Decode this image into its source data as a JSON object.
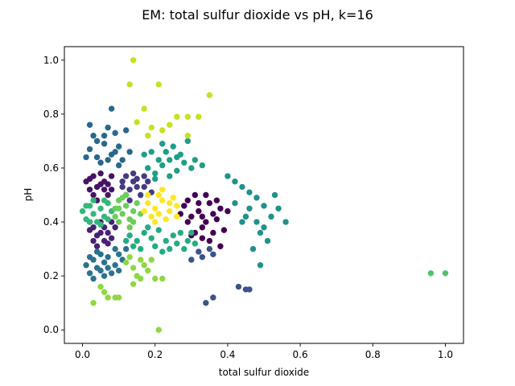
{
  "chart_data": {
    "type": "scatter",
    "title": "EM: total sulfur dioxide vs pH, k=16",
    "xlabel": "total sulfur dioxide",
    "ylabel": "pH",
    "xlim": [
      -0.05,
      1.05
    ],
    "ylim": [
      -0.05,
      1.05
    ],
    "xticks": [
      0.0,
      0.2,
      0.4,
      0.6,
      0.8,
      1.0
    ],
    "yticks": [
      0.0,
      0.2,
      0.4,
      0.6,
      0.8,
      1.0
    ],
    "tick_labels_x": [
      "0.0",
      "0.2",
      "0.4",
      "0.6",
      "0.8",
      "1.0"
    ],
    "tick_labels_y": [
      "0.0",
      "0.2",
      "0.4",
      "0.6",
      "0.8",
      "1.0"
    ],
    "grid": false,
    "legend": "none",
    "colormap": "viridis",
    "clusters": [
      {
        "color": "#440154",
        "points": [
          [
            0.28,
            0.46
          ],
          [
            0.3,
            0.42
          ],
          [
            0.32,
            0.44
          ],
          [
            0.34,
            0.4
          ],
          [
            0.36,
            0.43
          ],
          [
            0.38,
            0.45
          ],
          [
            0.33,
            0.38
          ],
          [
            0.29,
            0.48
          ],
          [
            0.31,
            0.5
          ],
          [
            0.35,
            0.47
          ],
          [
            0.37,
            0.41
          ],
          [
            0.39,
            0.37
          ],
          [
            0.27,
            0.43
          ],
          [
            0.3,
            0.35
          ],
          [
            0.33,
            0.34
          ],
          [
            0.36,
            0.36
          ],
          [
            0.34,
            0.5
          ],
          [
            0.4,
            0.44
          ],
          [
            0.32,
            0.47
          ],
          [
            0.29,
            0.4
          ],
          [
            0.35,
            0.33
          ],
          [
            0.38,
            0.31
          ],
          [
            0.31,
            0.36
          ],
          [
            0.37,
            0.48
          ],
          [
            0.33,
            0.42
          ]
        ]
      },
      {
        "color": "#471365",
        "points": [
          [
            0.02,
            0.56
          ],
          [
            0.04,
            0.53
          ],
          [
            0.06,
            0.55
          ],
          [
            0.08,
            0.52
          ],
          [
            0.03,
            0.5
          ],
          [
            0.05,
            0.58
          ],
          [
            0.07,
            0.5
          ],
          [
            0.04,
            0.48
          ],
          [
            0.06,
            0.52
          ],
          [
            0.02,
            0.52
          ],
          [
            0.08,
            0.57
          ],
          [
            0.05,
            0.54
          ],
          [
            0.03,
            0.57
          ],
          [
            0.07,
            0.54
          ],
          [
            0.01,
            0.55
          ]
        ]
      },
      {
        "color": "#482173",
        "points": [
          [
            0.02,
            0.37
          ],
          [
            0.04,
            0.35
          ],
          [
            0.06,
            0.38
          ],
          [
            0.08,
            0.34
          ],
          [
            0.03,
            0.33
          ],
          [
            0.05,
            0.4
          ],
          [
            0.07,
            0.36
          ],
          [
            0.09,
            0.38
          ],
          [
            0.04,
            0.31
          ],
          [
            0.06,
            0.33
          ],
          [
            0.02,
            0.4
          ],
          [
            0.08,
            0.4
          ],
          [
            0.05,
            0.36
          ],
          [
            0.03,
            0.38
          ],
          [
            0.07,
            0.32
          ]
        ]
      },
      {
        "color": "#443a83",
        "points": [
          [
            0.11,
            0.55
          ],
          [
            0.13,
            0.52
          ],
          [
            0.15,
            0.56
          ],
          [
            0.17,
            0.53
          ],
          [
            0.12,
            0.5
          ],
          [
            0.14,
            0.58
          ],
          [
            0.16,
            0.5
          ],
          [
            0.18,
            0.55
          ],
          [
            0.13,
            0.48
          ],
          [
            0.15,
            0.53
          ],
          [
            0.19,
            0.51
          ],
          [
            0.11,
            0.53
          ],
          [
            0.14,
            0.55
          ],
          [
            0.17,
            0.57
          ],
          [
            0.12,
            0.57
          ]
        ]
      },
      {
        "color": "#3b528b",
        "points": [
          [
            0.35,
            0.3
          ],
          [
            0.36,
            0.28
          ],
          [
            0.33,
            0.27
          ],
          [
            0.3,
            0.26
          ],
          [
            0.43,
            0.16
          ],
          [
            0.45,
            0.15
          ],
          [
            0.46,
            0.15
          ],
          [
            0.34,
            0.1
          ],
          [
            0.36,
            0.12
          ],
          [
            0.32,
            0.29
          ]
        ]
      },
      {
        "color": "#2c728e",
        "points": [
          [
            0.01,
            0.24
          ],
          [
            0.03,
            0.26
          ],
          [
            0.05,
            0.22
          ],
          [
            0.07,
            0.27
          ],
          [
            0.09,
            0.24
          ],
          [
            0.02,
            0.21
          ],
          [
            0.04,
            0.29
          ],
          [
            0.06,
            0.25
          ],
          [
            0.08,
            0.21
          ],
          [
            0.1,
            0.28
          ],
          [
            0.03,
            0.19
          ],
          [
            0.12,
            0.3
          ],
          [
            0.11,
            0.26
          ],
          [
            0.05,
            0.28
          ],
          [
            0.07,
            0.23
          ],
          [
            0.09,
            0.3
          ],
          [
            0.02,
            0.27
          ],
          [
            0.04,
            0.23
          ],
          [
            0.06,
            0.2
          ],
          [
            0.1,
            0.22
          ]
        ]
      },
      {
        "color": "#28688e",
        "points": [
          [
            0.02,
            0.67
          ],
          [
            0.04,
            0.64
          ],
          [
            0.06,
            0.69
          ],
          [
            0.08,
            0.65
          ],
          [
            0.1,
            0.68
          ],
          [
            0.03,
            0.72
          ],
          [
            0.07,
            0.75
          ],
          [
            0.09,
            0.73
          ],
          [
            0.02,
            0.76
          ],
          [
            0.05,
            0.62
          ],
          [
            0.11,
            0.63
          ],
          [
            0.13,
            0.66
          ],
          [
            0.07,
            0.63
          ],
          [
            0.1,
            0.61
          ],
          [
            0.04,
            0.7
          ],
          [
            0.08,
            0.82
          ],
          [
            0.06,
            0.72
          ],
          [
            0.12,
            0.74
          ],
          [
            0.01,
            0.64
          ],
          [
            0.09,
            0.66
          ]
        ]
      },
      {
        "color": "#21918c",
        "points": [
          [
            0.4,
            0.57
          ],
          [
            0.42,
            0.55
          ],
          [
            0.44,
            0.53
          ],
          [
            0.46,
            0.51
          ],
          [
            0.48,
            0.49
          ],
          [
            0.5,
            0.46
          ],
          [
            0.52,
            0.42
          ],
          [
            0.54,
            0.45
          ],
          [
            0.56,
            0.4
          ],
          [
            0.53,
            0.5
          ],
          [
            0.46,
            0.45
          ],
          [
            0.44,
            0.4
          ],
          [
            0.49,
            0.36
          ],
          [
            0.51,
            0.33
          ],
          [
            0.47,
            0.3
          ],
          [
            0.49,
            0.24
          ],
          [
            0.42,
            0.47
          ],
          [
            0.48,
            0.4
          ],
          [
            0.45,
            0.42
          ],
          [
            0.5,
            0.38
          ]
        ]
      },
      {
        "color": "#1f9e89",
        "points": [
          [
            0.18,
            0.6
          ],
          [
            0.2,
            0.58
          ],
          [
            0.22,
            0.61
          ],
          [
            0.24,
            0.57
          ],
          [
            0.26,
            0.59
          ],
          [
            0.28,
            0.62
          ],
          [
            0.3,
            0.6
          ],
          [
            0.21,
            0.63
          ],
          [
            0.23,
            0.66
          ],
          [
            0.25,
            0.68
          ],
          [
            0.27,
            0.65
          ],
          [
            0.29,
            0.7
          ],
          [
            0.31,
            0.63
          ],
          [
            0.33,
            0.61
          ],
          [
            0.19,
            0.66
          ],
          [
            0.22,
            0.69
          ],
          [
            0.26,
            0.64
          ],
          [
            0.2,
            0.56
          ],
          [
            0.24,
            0.63
          ],
          [
            0.17,
            0.65
          ]
        ]
      },
      {
        "color": "#25ab82",
        "points": [
          [
            0.13,
            0.35
          ],
          [
            0.15,
            0.33
          ],
          [
            0.17,
            0.36
          ],
          [
            0.19,
            0.34
          ],
          [
            0.21,
            0.37
          ],
          [
            0.23,
            0.33
          ],
          [
            0.25,
            0.35
          ],
          [
            0.27,
            0.36
          ],
          [
            0.29,
            0.33
          ],
          [
            0.14,
            0.31
          ],
          [
            0.16,
            0.3
          ],
          [
            0.2,
            0.31
          ],
          [
            0.24,
            0.3
          ],
          [
            0.18,
            0.38
          ],
          [
            0.22,
            0.29
          ],
          [
            0.26,
            0.32
          ],
          [
            0.28,
            0.3
          ],
          [
            0.12,
            0.33
          ],
          [
            0.3,
            0.36
          ],
          [
            0.31,
            0.32
          ]
        ]
      },
      {
        "color": "#35b779",
        "points": [
          [
            0.0,
            0.44
          ],
          [
            0.01,
            0.41
          ],
          [
            0.02,
            0.46
          ],
          [
            0.03,
            0.43
          ],
          [
            0.04,
            0.4
          ],
          [
            0.05,
            0.45
          ],
          [
            0.06,
            0.42
          ],
          [
            0.07,
            0.47
          ],
          [
            0.08,
            0.44
          ],
          [
            0.03,
            0.48
          ],
          [
            0.05,
            0.39
          ],
          [
            0.01,
            0.46
          ],
          [
            0.07,
            0.41
          ],
          [
            0.02,
            0.4
          ],
          [
            0.06,
            0.48
          ]
        ]
      },
      {
        "color": "#4ec36b",
        "points": [
          [
            0.96,
            0.21
          ],
          [
            1.0,
            0.21
          ]
        ]
      },
      {
        "color": "#6ccd5a",
        "points": [
          [
            0.09,
            0.45
          ],
          [
            0.1,
            0.48
          ],
          [
            0.11,
            0.43
          ],
          [
            0.12,
            0.46
          ],
          [
            0.13,
            0.41
          ],
          [
            0.14,
            0.44
          ],
          [
            0.1,
            0.4
          ],
          [
            0.15,
            0.47
          ],
          [
            0.12,
            0.5
          ],
          [
            0.09,
            0.42
          ],
          [
            0.13,
            0.38
          ],
          [
            0.11,
            0.49
          ],
          [
            0.14,
            0.4
          ],
          [
            0.16,
            0.43
          ],
          [
            0.1,
            0.45
          ]
        ]
      },
      {
        "color": "#8fd744",
        "points": [
          [
            0.12,
            0.25
          ],
          [
            0.14,
            0.23
          ],
          [
            0.16,
            0.26
          ],
          [
            0.18,
            0.22
          ],
          [
            0.15,
            0.2
          ],
          [
            0.17,
            0.24
          ],
          [
            0.13,
            0.27
          ],
          [
            0.19,
            0.26
          ],
          [
            0.2,
            0.19
          ],
          [
            0.22,
            0.19
          ],
          [
            0.05,
            0.16
          ],
          [
            0.06,
            0.14
          ],
          [
            0.07,
            0.12
          ],
          [
            0.09,
            0.12
          ],
          [
            0.03,
            0.1
          ],
          [
            0.14,
            0.17
          ],
          [
            0.16,
            0.19
          ],
          [
            0.21,
            0.0
          ],
          [
            0.1,
            0.12
          ]
        ]
      },
      {
        "color": "#c8e020",
        "points": [
          [
            0.14,
            1.0
          ],
          [
            0.13,
            0.91
          ],
          [
            0.21,
            0.91
          ],
          [
            0.17,
            0.82
          ],
          [
            0.26,
            0.79
          ],
          [
            0.29,
            0.79
          ],
          [
            0.35,
            0.87
          ],
          [
            0.32,
            0.79
          ],
          [
            0.24,
            0.76
          ],
          [
            0.19,
            0.75
          ],
          [
            0.15,
            0.77
          ],
          [
            0.29,
            0.72
          ],
          [
            0.18,
            0.72
          ],
          [
            0.22,
            0.74
          ]
        ]
      },
      {
        "color": "#fde725",
        "points": [
          [
            0.18,
            0.47
          ],
          [
            0.2,
            0.45
          ],
          [
            0.22,
            0.48
          ],
          [
            0.24,
            0.44
          ],
          [
            0.26,
            0.46
          ],
          [
            0.19,
            0.42
          ],
          [
            0.21,
            0.5
          ],
          [
            0.23,
            0.41
          ],
          [
            0.25,
            0.49
          ],
          [
            0.17,
            0.44
          ],
          [
            0.2,
            0.4
          ],
          [
            0.22,
            0.52
          ],
          [
            0.24,
            0.47
          ],
          [
            0.26,
            0.42
          ],
          [
            0.18,
            0.5
          ],
          [
            0.21,
            0.43
          ]
        ]
      }
    ]
  }
}
